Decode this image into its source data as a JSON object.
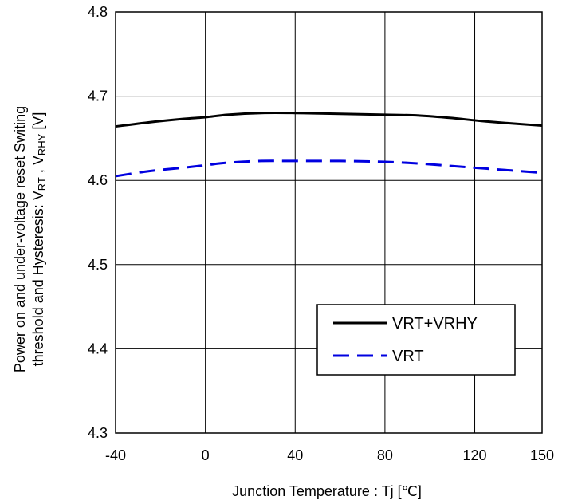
{
  "chart_data": {
    "type": "line",
    "xlabel": "Junction Temperature : Tj [℃]",
    "ylabel_line1": "Power on and  under-voltage reset Switing",
    "ylabel_line2_prefix": "threshold and Hysteresis: V",
    "ylabel_line2_sub1": "RT",
    "ylabel_line2_mid": " , V",
    "ylabel_line2_sub2": "RHY",
    "ylabel_line2_suffix": " [V]",
    "xlim": [
      -40,
      150
    ],
    "ylim": [
      4.3,
      4.8
    ],
    "x_ticks": [
      -40,
      0,
      40,
      80,
      120,
      150
    ],
    "x_tick_labels": [
      "-40",
      "0",
      "40",
      "80",
      "120",
      "150"
    ],
    "y_ticks": [
      4.3,
      4.4,
      4.5,
      4.6,
      4.7,
      4.8
    ],
    "y_tick_labels": [
      "4.3",
      "4.4",
      "4.5",
      "4.6",
      "4.7",
      "4.8"
    ],
    "grid": true,
    "legend_position": "lower-right",
    "series": [
      {
        "name": "VRT+VRHY",
        "color": "#000000",
        "style": "solid",
        "x": [
          -40,
          -25,
          -10,
          0,
          10,
          25,
          40,
          60,
          80,
          95,
          110,
          125,
          150
        ],
        "y": [
          4.664,
          4.669,
          4.673,
          4.675,
          4.678,
          4.68,
          4.68,
          4.679,
          4.678,
          4.677,
          4.674,
          4.67,
          4.665
        ]
      },
      {
        "name": "VRT",
        "color": "#0000E0",
        "style": "dashed",
        "x": [
          -40,
          -25,
          -10,
          0,
          10,
          25,
          40,
          60,
          80,
          95,
          110,
          125,
          150
        ],
        "y": [
          4.605,
          4.611,
          4.615,
          4.618,
          4.621,
          4.623,
          4.623,
          4.623,
          4.622,
          4.62,
          4.617,
          4.614,
          4.609
        ]
      }
    ]
  }
}
